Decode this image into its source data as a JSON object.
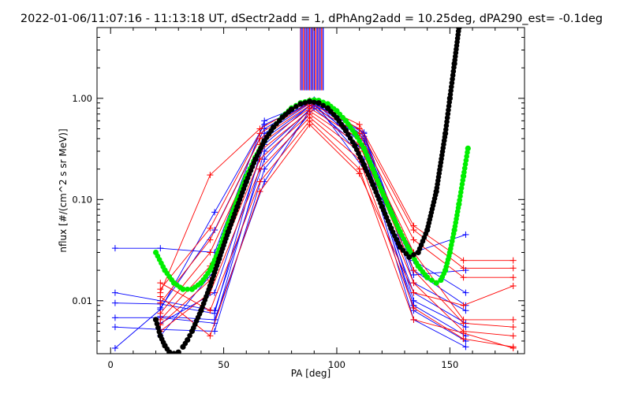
{
  "chart_data": {
    "type": "scatter",
    "title": "2022-01-06/11:07:16 - 11:13:18 UT, dSectr2add = 1, dPhAng2add = 10.25deg, dPA290_est=  -0.1deg",
    "xlabel": "PA [deg]",
    "ylabel": "nflux [#/(cm^2 s sr MeV)]",
    "xlim": [
      -6,
      183
    ],
    "ylim": [
      0.003,
      5
    ],
    "yscale": "log",
    "x_ticks": [
      0,
      50,
      100,
      150
    ],
    "x_tick_labels": [
      "0",
      "50",
      "100",
      "150"
    ],
    "y_ticks": [
      0.01,
      0.1,
      1.0
    ],
    "y_tick_labels": [
      "0.01",
      "0.10",
      "1.00"
    ],
    "grid": false,
    "colors": {
      "blue": "#0000ff",
      "red": "#ff0000",
      "green": "#00ee00",
      "black": "#000000",
      "purple": "#800080"
    },
    "series": [
      {
        "color": "blue",
        "marker": "plus",
        "line": true,
        "x": [
          2,
          22,
          46,
          68,
          90,
          112,
          134,
          157
        ],
        "y": [
          0.033,
          0.033,
          0.03,
          0.6,
          0.95,
          0.46,
          0.02,
          0.009
        ]
      },
      {
        "color": "blue",
        "marker": "plus",
        "line": true,
        "x": [
          2,
          22,
          46,
          68,
          90,
          112,
          134,
          157
        ],
        "y": [
          0.0095,
          0.0093,
          0.0075,
          0.4,
          0.9,
          0.4,
          0.01,
          0.0055
        ]
      },
      {
        "color": "blue",
        "marker": "plus",
        "line": true,
        "x": [
          2,
          22,
          46,
          68,
          90,
          112,
          134,
          157
        ],
        "y": [
          0.0068,
          0.0068,
          0.006,
          0.3,
          0.85,
          0.35,
          0.008,
          0.004
        ]
      },
      {
        "color": "blue",
        "marker": "plus",
        "line": true,
        "x": [
          2,
          22,
          46,
          68,
          90,
          112,
          134,
          157
        ],
        "y": [
          0.0055,
          0.0052,
          0.005,
          0.2,
          0.8,
          0.3,
          0.0065,
          0.0035
        ]
      },
      {
        "color": "blue",
        "marker": "plus",
        "line": true,
        "x": [
          2,
          22,
          46,
          68,
          90,
          112,
          134,
          157
        ],
        "y": [
          0.0034,
          0.0082,
          0.075,
          0.55,
          0.93,
          0.2,
          0.03,
          0.045
        ]
      },
      {
        "color": "blue",
        "marker": "plus",
        "line": true,
        "x": [
          2,
          22,
          46,
          68,
          90,
          112,
          134,
          157
        ],
        "y": [
          0.012,
          0.01,
          0.008,
          0.25,
          0.88,
          0.25,
          0.012,
          0.006
        ]
      },
      {
        "color": "blue",
        "marker": "plus",
        "line": true,
        "x": [
          22,
          46,
          68,
          90,
          112,
          134,
          157
        ],
        "y": [
          0.007,
          0.0065,
          0.15,
          0.9,
          0.45,
          0.015,
          0.008
        ]
      },
      {
        "color": "blue",
        "marker": "plus",
        "line": true,
        "x": [
          22,
          46,
          68,
          90,
          112,
          134,
          157
        ],
        "y": [
          0.006,
          0.012,
          0.35,
          0.92,
          0.38,
          0.025,
          0.012
        ]
      },
      {
        "color": "blue",
        "marker": "plus",
        "line": true,
        "x": [
          22,
          46,
          68,
          90,
          112,
          134,
          157
        ],
        "y": [
          0.0045,
          0.02,
          0.45,
          0.95,
          0.3,
          0.009,
          0.0045
        ]
      },
      {
        "color": "blue",
        "marker": "plus",
        "line": true,
        "x": [
          22,
          46,
          68,
          90,
          112,
          134,
          157
        ],
        "y": [
          0.0085,
          0.05,
          0.5,
          0.97,
          0.42,
          0.018,
          0.02
        ]
      },
      {
        "color": "red",
        "marker": "plus",
        "line": true,
        "x": [
          22,
          44,
          66,
          88,
          110,
          134,
          156,
          178
        ],
        "y": [
          0.012,
          0.175,
          0.5,
          0.95,
          0.55,
          0.055,
          0.025,
          0.025
        ]
      },
      {
        "color": "red",
        "marker": "plus",
        "line": true,
        "x": [
          22,
          44,
          66,
          88,
          110,
          134,
          156,
          178
        ],
        "y": [
          0.013,
          0.052,
          0.45,
          0.9,
          0.5,
          0.05,
          0.021,
          0.021
        ]
      },
      {
        "color": "red",
        "marker": "plus",
        "line": true,
        "x": [
          22,
          44,
          66,
          88,
          110,
          134,
          156,
          178
        ],
        "y": [
          0.0095,
          0.04,
          0.4,
          0.85,
          0.45,
          0.04,
          0.017,
          0.017
        ]
      },
      {
        "color": "red",
        "marker": "plus",
        "line": true,
        "x": [
          22,
          44,
          66,
          88,
          110,
          134,
          156,
          178
        ],
        "y": [
          0.0075,
          0.03,
          0.35,
          0.8,
          0.4,
          0.03,
          0.0065,
          0.0065
        ]
      },
      {
        "color": "red",
        "marker": "plus",
        "line": true,
        "x": [
          22,
          44,
          66,
          88,
          110,
          134,
          156,
          178
        ],
        "y": [
          0.0065,
          0.022,
          0.3,
          0.75,
          0.35,
          0.02,
          0.006,
          0.0055
        ]
      },
      {
        "color": "red",
        "marker": "plus",
        "line": true,
        "x": [
          22,
          44,
          66,
          88,
          110,
          134,
          156,
          178
        ],
        "y": [
          0.0058,
          0.016,
          0.25,
          0.7,
          0.3,
          0.015,
          0.005,
          0.0045
        ]
      },
      {
        "color": "red",
        "marker": "plus",
        "line": true,
        "x": [
          22,
          44,
          66,
          88,
          110,
          134,
          156,
          178
        ],
        "y": [
          0.005,
          0.012,
          0.2,
          0.65,
          0.25,
          0.0085,
          0.0042,
          0.0035
        ]
      },
      {
        "color": "red",
        "marker": "plus",
        "line": true,
        "x": [
          22,
          44,
          66,
          88,
          110,
          134,
          156,
          178
        ],
        "y": [
          0.015,
          0.008,
          0.15,
          0.6,
          0.2,
          0.0065,
          0.0048,
          0.0034
        ]
      },
      {
        "color": "red",
        "marker": "plus",
        "line": true,
        "x": [
          22,
          44,
          66,
          88,
          110,
          134,
          156,
          178
        ],
        "y": [
          0.011,
          0.0045,
          0.12,
          0.55,
          0.18,
          0.012,
          0.009,
          0.014
        ]
      },
      {
        "color": "green",
        "marker": "dot",
        "line": false,
        "x": [
          20,
          24,
          28,
          32,
          36,
          40,
          44,
          48,
          52,
          56,
          60,
          64,
          68,
          72,
          76,
          80,
          84,
          88,
          90,
          92,
          96,
          100,
          104,
          108,
          112,
          116,
          120,
          124,
          128,
          132,
          136,
          140,
          144,
          146,
          148,
          150,
          152,
          154,
          156,
          158
        ],
        "y": [
          0.03,
          0.02,
          0.015,
          0.013,
          0.013,
          0.015,
          0.02,
          0.032,
          0.058,
          0.1,
          0.17,
          0.26,
          0.38,
          0.52,
          0.66,
          0.8,
          0.9,
          0.95,
          0.96,
          0.95,
          0.88,
          0.75,
          0.6,
          0.45,
          0.32,
          0.2,
          0.12,
          0.075,
          0.048,
          0.032,
          0.022,
          0.017,
          0.015,
          0.016,
          0.02,
          0.03,
          0.05,
          0.09,
          0.17,
          0.32
        ]
      },
      {
        "color": "black",
        "marker": "dot",
        "line": false,
        "x": [
          20,
          22,
          24,
          26,
          28,
          30,
          32,
          34,
          36,
          40,
          44,
          48,
          52,
          56,
          60,
          64,
          68,
          72,
          76,
          80,
          84,
          88,
          92,
          96,
          100,
          104,
          108,
          112,
          116,
          120,
          124,
          128,
          132,
          136,
          140,
          144,
          148,
          150,
          152,
          154
        ],
        "y": [
          0.0065,
          0.0045,
          0.0036,
          0.0031,
          0.003,
          0.0031,
          0.0035,
          0.0041,
          0.005,
          0.008,
          0.014,
          0.026,
          0.048,
          0.085,
          0.15,
          0.25,
          0.38,
          0.52,
          0.65,
          0.78,
          0.88,
          0.93,
          0.9,
          0.8,
          0.64,
          0.48,
          0.34,
          0.22,
          0.14,
          0.085,
          0.052,
          0.034,
          0.027,
          0.03,
          0.05,
          0.12,
          0.45,
          1.0,
          2.2,
          5.0
        ]
      },
      {
        "color": "purple",
        "marker": "none",
        "line": false,
        "bars": true,
        "x_range": [
          84,
          94
        ],
        "y_range": [
          1.2,
          5
        ]
      }
    ]
  }
}
